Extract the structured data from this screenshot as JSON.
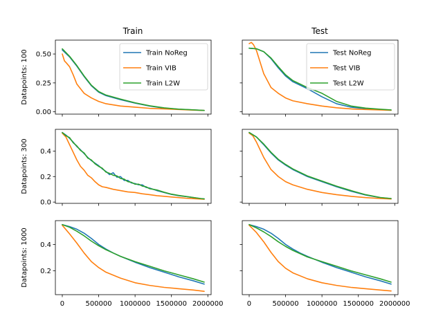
{
  "colors": {
    "NoReg": "#1f77b4",
    "VIB": "#ff7f0e",
    "L2W": "#2ca02c"
  },
  "chart_data": {
    "type": "line",
    "column_titles": [
      "Train",
      "Test"
    ],
    "row_labels": [
      "Datapoints: 100",
      "Datapoints: 300",
      "Datapoints: 1000"
    ],
    "x_ticks": [
      0,
      500000,
      1000000,
      1500000,
      2000000
    ],
    "x_tick_labels": [
      "0",
      "500000",
      "1000000",
      "1500000",
      "2000000"
    ],
    "xlim": [
      -95000,
      2045000
    ],
    "rows": [
      {
        "ylim": [
          -0.02,
          0.62
        ],
        "y_ticks": [
          0.0,
          0.25,
          0.5
        ],
        "y_tick_labels": [
          "0.00",
          "0.25",
          "0.50"
        ],
        "legend_position": "top-right",
        "train": {
          "legend": [
            "Train NoReg",
            "Train VIB",
            "Train L2W"
          ],
          "series": [
            {
              "name": "Train NoReg",
              "color": "#1f77b4",
              "x": [
                0,
                100000,
                200000,
                300000,
                400000,
                500000,
                600000,
                800000,
                1000000,
                1200000,
                1400000,
                1600000,
                1800000,
                1950000
              ],
              "y": [
                0.535,
                0.475,
                0.395,
                0.305,
                0.225,
                0.17,
                0.14,
                0.105,
                0.075,
                0.05,
                0.032,
                0.022,
                0.016,
                0.012
              ]
            },
            {
              "name": "Train VIB",
              "color": "#ff7f0e",
              "x": [
                0,
                30000,
                60000,
                100000,
                150000,
                200000,
                250000,
                300000,
                400000,
                500000,
                600000,
                800000,
                1000000,
                1200000,
                1400000,
                1600000,
                1800000,
                1950000
              ],
              "y": [
                0.5,
                0.44,
                0.42,
                0.39,
                0.32,
                0.24,
                0.2,
                0.16,
                0.12,
                0.09,
                0.07,
                0.05,
                0.04,
                0.03,
                0.025,
                0.02,
                0.015,
                0.012
              ]
            },
            {
              "name": "Train L2W",
              "color": "#2ca02c",
              "x": [
                0,
                100000,
                200000,
                300000,
                400000,
                500000,
                600000,
                800000,
                1000000,
                1200000,
                1400000,
                1600000,
                1800000,
                1950000
              ],
              "y": [
                0.545,
                0.48,
                0.4,
                0.31,
                0.23,
                0.175,
                0.145,
                0.11,
                0.078,
                0.052,
                0.034,
                0.023,
                0.017,
                0.012
              ]
            }
          ]
        },
        "test": {
          "legend": [
            "Test NoReg",
            "Test VIB",
            "Test L2W"
          ],
          "series": [
            {
              "name": "Test NoReg",
              "color": "#1f77b4",
              "x": [
                0,
                100000,
                200000,
                300000,
                400000,
                500000,
                600000,
                800000,
                1000000,
                1200000,
                1400000,
                1600000,
                1800000,
                1950000
              ],
              "y": [
                0.55,
                0.545,
                0.52,
                0.46,
                0.38,
                0.31,
                0.26,
                0.2,
                0.13,
                0.07,
                0.04,
                0.028,
                0.02,
                0.015
              ]
            },
            {
              "name": "Test VIB",
              "color": "#ff7f0e",
              "x": [
                0,
                30000,
                60000,
                100000,
                150000,
                200000,
                300000,
                400000,
                500000,
                600000,
                800000,
                1000000,
                1200000,
                1400000,
                1600000,
                1800000,
                1950000
              ],
              "y": [
                0.59,
                0.6,
                0.58,
                0.53,
                0.43,
                0.33,
                0.21,
                0.16,
                0.12,
                0.095,
                0.07,
                0.05,
                0.035,
                0.025,
                0.02,
                0.016,
                0.013
              ]
            },
            {
              "name": "Test L2W",
              "color": "#2ca02c",
              "x": [
                0,
                100000,
                200000,
                300000,
                400000,
                500000,
                600000,
                800000,
                1000000,
                1200000,
                1400000,
                1600000,
                1800000,
                1950000
              ],
              "y": [
                0.55,
                0.545,
                0.52,
                0.465,
                0.39,
                0.32,
                0.27,
                0.21,
                0.16,
                0.09,
                0.05,
                0.032,
                0.022,
                0.016
              ]
            }
          ]
        }
      },
      {
        "ylim": [
          -0.01,
          0.57
        ],
        "y_ticks": [
          0.0,
          0.2,
          0.4
        ],
        "y_tick_labels": [
          "0.0",
          "0.2",
          "0.4"
        ],
        "train": {
          "series": [
            {
              "name": "Train NoReg",
              "color": "#1f77b4",
              "x": [
                0,
                50000,
                100000,
                150000,
                200000,
                250000,
                300000,
                350000,
                400000,
                450000,
                500000,
                550000,
                600000,
                650000,
                700000,
                750000,
                800000,
                850000,
                900000,
                950000,
                1000000,
                1050000,
                1100000,
                1150000,
                1200000,
                1250000,
                1300000,
                1400000,
                1500000,
                1600000,
                1700000,
                1800000,
                1900000,
                1950000
              ],
              "y": [
                0.545,
                0.525,
                0.5,
                0.47,
                0.435,
                0.41,
                0.38,
                0.35,
                0.325,
                0.305,
                0.285,
                0.26,
                0.24,
                0.215,
                0.23,
                0.195,
                0.2,
                0.17,
                0.17,
                0.15,
                0.145,
                0.135,
                0.135,
                0.115,
                0.11,
                0.1,
                0.09,
                0.075,
                0.06,
                0.05,
                0.043,
                0.035,
                0.027,
                0.025
              ]
            },
            {
              "name": "Train VIB",
              "color": "#ff7f0e",
              "x": [
                0,
                50000,
                100000,
                150000,
                200000,
                250000,
                300000,
                350000,
                400000,
                450000,
                500000,
                550000,
                600000,
                700000,
                800000,
                900000,
                1000000,
                1100000,
                1200000,
                1300000,
                1400000,
                1500000,
                1600000,
                1700000,
                1800000,
                1950000
              ],
              "y": [
                0.54,
                0.51,
                0.45,
                0.39,
                0.33,
                0.28,
                0.25,
                0.21,
                0.19,
                0.16,
                0.135,
                0.12,
                0.115,
                0.1,
                0.09,
                0.08,
                0.075,
                0.065,
                0.058,
                0.05,
                0.045,
                0.04,
                0.035,
                0.03,
                0.027,
                0.022
              ]
            },
            {
              "name": "Train L2W",
              "color": "#2ca02c",
              "x": [
                0,
                50000,
                100000,
                150000,
                200000,
                250000,
                300000,
                350000,
                400000,
                450000,
                500000,
                550000,
                600000,
                650000,
                700000,
                750000,
                800000,
                850000,
                900000,
                950000,
                1000000,
                1050000,
                1100000,
                1150000,
                1200000,
                1250000,
                1300000,
                1400000,
                1500000,
                1600000,
                1700000,
                1800000,
                1900000,
                1950000
              ],
              "y": [
                0.545,
                0.52,
                0.505,
                0.465,
                0.44,
                0.405,
                0.385,
                0.345,
                0.33,
                0.3,
                0.28,
                0.265,
                0.235,
                0.225,
                0.21,
                0.205,
                0.185,
                0.18,
                0.16,
                0.155,
                0.14,
                0.14,
                0.125,
                0.12,
                0.105,
                0.1,
                0.095,
                0.077,
                0.062,
                0.052,
                0.044,
                0.036,
                0.028,
                0.025
              ]
            }
          ]
        },
        "test": {
          "series": [
            {
              "name": "Test NoReg",
              "color": "#1f77b4",
              "x": [
                0,
                100000,
                200000,
                300000,
                400000,
                500000,
                600000,
                800000,
                1000000,
                1200000,
                1400000,
                1600000,
                1800000,
                1950000
              ],
              "y": [
                0.545,
                0.51,
                0.45,
                0.385,
                0.33,
                0.29,
                0.255,
                0.2,
                0.16,
                0.12,
                0.085,
                0.055,
                0.035,
                0.027
              ]
            },
            {
              "name": "Test VIB",
              "color": "#ff7f0e",
              "x": [
                0,
                50000,
                100000,
                150000,
                200000,
                300000,
                400000,
                500000,
                600000,
                800000,
                1000000,
                1200000,
                1400000,
                1600000,
                1800000,
                1950000
              ],
              "y": [
                0.54,
                0.52,
                0.47,
                0.41,
                0.35,
                0.255,
                0.2,
                0.16,
                0.135,
                0.1,
                0.075,
                0.058,
                0.045,
                0.035,
                0.028,
                0.024
              ]
            },
            {
              "name": "Test L2W",
              "color": "#2ca02c",
              "x": [
                0,
                100000,
                200000,
                300000,
                400000,
                500000,
                600000,
                800000,
                1000000,
                1200000,
                1400000,
                1600000,
                1800000,
                1950000
              ],
              "y": [
                0.545,
                0.51,
                0.455,
                0.39,
                0.335,
                0.295,
                0.26,
                0.205,
                0.165,
                0.125,
                0.09,
                0.058,
                0.036,
                0.028
              ]
            }
          ]
        }
      },
      {
        "ylim": [
          0.02,
          0.58
        ],
        "y_ticks": [
          0.2,
          0.4
        ],
        "y_tick_labels": [
          "0.2",
          "0.4"
        ],
        "train": {
          "series": [
            {
              "name": "Train NoReg",
              "color": "#1f77b4",
              "x": [
                0,
                100000,
                200000,
                300000,
                400000,
                500000,
                600000,
                700000,
                800000,
                1000000,
                1200000,
                1400000,
                1600000,
                1800000,
                1950000
              ],
              "y": [
                0.55,
                0.535,
                0.515,
                0.485,
                0.445,
                0.4,
                0.365,
                0.335,
                0.31,
                0.265,
                0.225,
                0.19,
                0.155,
                0.125,
                0.1
              ]
            },
            {
              "name": "Train VIB",
              "color": "#ff7f0e",
              "x": [
                0,
                100000,
                200000,
                300000,
                400000,
                500000,
                600000,
                800000,
                1000000,
                1200000,
                1400000,
                1600000,
                1800000,
                1950000
              ],
              "y": [
                0.545,
                0.48,
                0.41,
                0.335,
                0.27,
                0.225,
                0.19,
                0.145,
                0.11,
                0.09,
                0.075,
                0.065,
                0.055,
                0.045
              ]
            },
            {
              "name": "Train L2W",
              "color": "#2ca02c",
              "x": [
                0,
                100000,
                200000,
                300000,
                400000,
                500000,
                600000,
                700000,
                800000,
                1000000,
                1200000,
                1400000,
                1600000,
                1800000,
                1950000
              ],
              "y": [
                0.55,
                0.53,
                0.5,
                0.465,
                0.425,
                0.39,
                0.36,
                0.335,
                0.31,
                0.27,
                0.235,
                0.2,
                0.17,
                0.14,
                0.115
              ]
            }
          ]
        },
        "test": {
          "series": [
            {
              "name": "Test NoReg",
              "color": "#1f77b4",
              "x": [
                0,
                100000,
                200000,
                300000,
                400000,
                500000,
                600000,
                700000,
                800000,
                1000000,
                1200000,
                1400000,
                1600000,
                1800000,
                1950000
              ],
              "y": [
                0.55,
                0.535,
                0.515,
                0.485,
                0.445,
                0.4,
                0.365,
                0.335,
                0.31,
                0.265,
                0.225,
                0.19,
                0.155,
                0.125,
                0.1
              ]
            },
            {
              "name": "Test VIB",
              "color": "#ff7f0e",
              "x": [
                0,
                100000,
                200000,
                300000,
                400000,
                500000,
                600000,
                800000,
                1000000,
                1200000,
                1400000,
                1600000,
                1800000,
                1950000
              ],
              "y": [
                0.545,
                0.49,
                0.42,
                0.34,
                0.27,
                0.22,
                0.185,
                0.14,
                0.11,
                0.09,
                0.075,
                0.065,
                0.055,
                0.048
              ]
            },
            {
              "name": "Test L2W",
              "color": "#2ca02c",
              "x": [
                0,
                100000,
                200000,
                300000,
                400000,
                500000,
                600000,
                700000,
                800000,
                1000000,
                1200000,
                1400000,
                1600000,
                1800000,
                1950000
              ],
              "y": [
                0.55,
                0.525,
                0.495,
                0.46,
                0.42,
                0.385,
                0.355,
                0.33,
                0.305,
                0.27,
                0.235,
                0.2,
                0.17,
                0.14,
                0.115
              ]
            }
          ]
        }
      }
    ]
  }
}
